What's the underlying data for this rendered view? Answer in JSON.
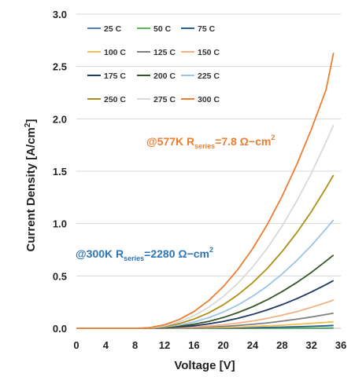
{
  "chart_data": {
    "type": "line",
    "xlabel": "Voltage [V]",
    "ylabel_main": "Current Density [A/cm",
    "ylabel_sup": "2",
    "ylabel_end": "]",
    "xlim": [
      0,
      36
    ],
    "ylim": [
      0,
      3.0
    ],
    "x_ticks": [
      "0",
      "4",
      "8",
      "12",
      "16",
      "20",
      "24",
      "28",
      "32",
      "36"
    ],
    "y_ticks": [
      "0.0",
      "0.5",
      "1.0",
      "1.5",
      "2.0",
      "2.5",
      "3.0"
    ],
    "grid": "horizontal",
    "legend_position": "top-left",
    "x": [
      0,
      2,
      4,
      6,
      7,
      8,
      9,
      10,
      12,
      14,
      16,
      18,
      20,
      22,
      24,
      26,
      28,
      30,
      32,
      34,
      35
    ],
    "series": [
      {
        "name": "25 C",
        "color": "#4f81bd",
        "values": [
          0,
          0,
          0,
          0,
          0,
          0,
          0,
          0,
          0,
          0,
          0,
          0,
          0,
          0,
          0,
          0,
          0,
          0,
          0,
          0,
          0.001
        ]
      },
      {
        "name": "50 C",
        "color": "#5cb85c",
        "values": [
          0,
          0,
          0,
          0,
          0,
          0,
          0,
          0,
          0,
          0,
          0,
          0,
          0,
          0,
          0,
          0.001,
          0.001,
          0.002,
          0.003,
          0.004,
          0.005
        ]
      },
      {
        "name": "75 C",
        "color": "#2a5f8f",
        "values": [
          0,
          0,
          0,
          0,
          0,
          0,
          0,
          0,
          0,
          0,
          0.001,
          0.002,
          0.003,
          0.004,
          0.006,
          0.008,
          0.011,
          0.015,
          0.019,
          0.024,
          0.028
        ]
      },
      {
        "name": "100 C",
        "color": "#f2c14e",
        "values": [
          0,
          0,
          0,
          0,
          0,
          0,
          0,
          0,
          0,
          0.001,
          0.003,
          0.005,
          0.008,
          0.012,
          0.017,
          0.023,
          0.03,
          0.038,
          0.047,
          0.057,
          0.062
        ]
      },
      {
        "name": "125 C",
        "color": "#7f7f7f",
        "values": [
          0,
          0,
          0,
          0,
          0,
          0,
          0,
          0,
          0.001,
          0.003,
          0.006,
          0.011,
          0.018,
          0.027,
          0.038,
          0.052,
          0.068,
          0.087,
          0.108,
          0.132,
          0.145
        ]
      },
      {
        "name": "150 C",
        "color": "#f4b183",
        "values": [
          0,
          0,
          0,
          0,
          0,
          0,
          0,
          0,
          0.002,
          0.006,
          0.012,
          0.021,
          0.034,
          0.05,
          0.07,
          0.095,
          0.125,
          0.16,
          0.2,
          0.245,
          0.27
        ]
      },
      {
        "name": "175 C",
        "color": "#1f3864",
        "values": [
          0,
          0,
          0,
          0,
          0,
          0,
          0,
          0.001,
          0.005,
          0.012,
          0.024,
          0.042,
          0.066,
          0.096,
          0.133,
          0.176,
          0.226,
          0.283,
          0.347,
          0.418,
          0.456
        ]
      },
      {
        "name": "200 C",
        "color": "#375623",
        "values": [
          0,
          0,
          0,
          0,
          0,
          0,
          0,
          0.001,
          0.008,
          0.02,
          0.039,
          0.066,
          0.103,
          0.15,
          0.206,
          0.273,
          0.35,
          0.437,
          0.535,
          0.643,
          0.7
        ]
      },
      {
        "name": "225 C",
        "color": "#9dc3e6",
        "values": [
          0,
          0,
          0,
          0,
          0,
          0,
          0.001,
          0.002,
          0.012,
          0.031,
          0.06,
          0.101,
          0.155,
          0.223,
          0.306,
          0.404,
          0.518,
          0.647,
          0.791,
          0.951,
          1.035
        ]
      },
      {
        "name": "250 C",
        "color": "#b08e14",
        "values": [
          0,
          0,
          0,
          0,
          0,
          0,
          0.001,
          0.004,
          0.018,
          0.045,
          0.088,
          0.147,
          0.224,
          0.32,
          0.436,
          0.573,
          0.732,
          0.913,
          1.116,
          1.342,
          1.463
        ]
      },
      {
        "name": "275 C",
        "color": "#d9d9d9",
        "values": [
          0,
          0,
          0,
          0,
          0,
          0,
          0.001,
          0.005,
          0.025,
          0.062,
          0.12,
          0.2,
          0.303,
          0.431,
          0.585,
          0.766,
          0.976,
          1.215,
          1.483,
          1.781,
          1.942
        ]
      },
      {
        "name": "300 C",
        "color": "#ed7d31",
        "values": [
          0,
          0,
          0,
          0,
          0,
          0,
          0.002,
          0.007,
          0.034,
          0.084,
          0.16,
          0.264,
          0.398,
          0.563,
          0.761,
          0.993,
          1.26,
          1.563,
          1.903,
          2.28,
          2.63
        ]
      }
    ],
    "annotations": [
      {
        "pre": "@577K R",
        "sub": "series",
        "post": "=7.8 Ω−cm",
        "sup": "2",
        "color": "#ed7d31"
      },
      {
        "pre": "@300K R",
        "sub": "series",
        "post": "=2280 Ω−cm",
        "sup": "2",
        "color": "#2e75b6"
      }
    ]
  }
}
